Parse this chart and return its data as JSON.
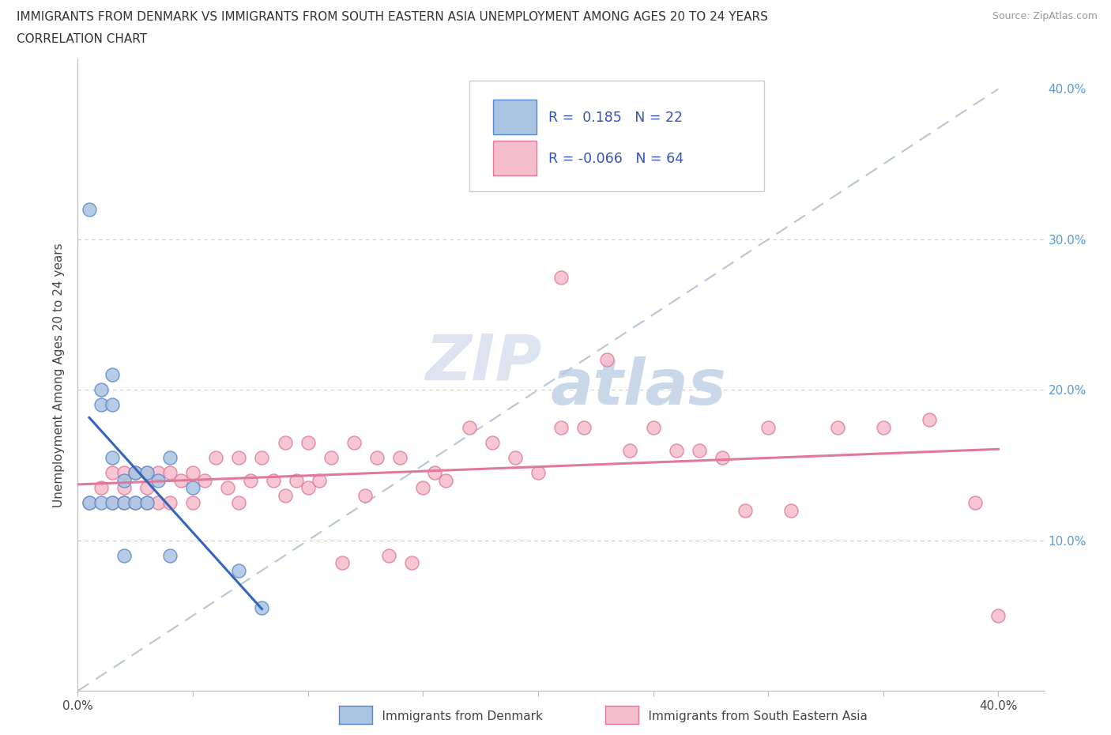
{
  "title_line1": "IMMIGRANTS FROM DENMARK VS IMMIGRANTS FROM SOUTH EASTERN ASIA UNEMPLOYMENT AMONG AGES 20 TO 24 YEARS",
  "title_line2": "CORRELATION CHART",
  "source": "Source: ZipAtlas.com",
  "ylabel": "Unemployment Among Ages 20 to 24 years",
  "xlim": [
    0.0,
    0.42
  ],
  "ylim": [
    0.0,
    0.42
  ],
  "xticks": [
    0.0,
    0.05,
    0.1,
    0.15,
    0.2,
    0.25,
    0.3,
    0.35,
    0.4
  ],
  "yticks": [
    0.1,
    0.2,
    0.3,
    0.4
  ],
  "denmark_color": "#aac4e2",
  "sea_color": "#f5bccb",
  "denmark_edge": "#5588cc",
  "sea_edge": "#e07898",
  "trendline_denmark_color": "#3366bb",
  "trendline_sea_color": "#e07898",
  "diagonal_color": "#b8c4d8",
  "legend_R_denmark": "0.185",
  "legend_N_denmark": "22",
  "legend_R_sea": "-0.066",
  "legend_N_sea": "64",
  "watermark_zip": "ZIP",
  "watermark_atlas": "atlas",
  "denmark_x": [
    0.005,
    0.005,
    0.01,
    0.01,
    0.01,
    0.015,
    0.015,
    0.015,
    0.015,
    0.02,
    0.02,
    0.02,
    0.025,
    0.025,
    0.03,
    0.03,
    0.035,
    0.04,
    0.04,
    0.05,
    0.07,
    0.08
  ],
  "denmark_y": [
    0.125,
    0.32,
    0.2,
    0.19,
    0.125,
    0.21,
    0.19,
    0.155,
    0.125,
    0.14,
    0.125,
    0.09,
    0.145,
    0.125,
    0.145,
    0.125,
    0.14,
    0.155,
    0.09,
    0.135,
    0.08,
    0.055
  ],
  "sea_x": [
    0.005,
    0.01,
    0.015,
    0.015,
    0.02,
    0.02,
    0.02,
    0.025,
    0.025,
    0.03,
    0.03,
    0.03,
    0.035,
    0.035,
    0.04,
    0.04,
    0.045,
    0.05,
    0.05,
    0.055,
    0.06,
    0.065,
    0.07,
    0.07,
    0.075,
    0.08,
    0.085,
    0.09,
    0.09,
    0.095,
    0.1,
    0.1,
    0.105,
    0.11,
    0.115,
    0.12,
    0.125,
    0.13,
    0.135,
    0.14,
    0.145,
    0.15,
    0.155,
    0.16,
    0.17,
    0.18,
    0.19,
    0.2,
    0.21,
    0.22,
    0.23,
    0.24,
    0.25,
    0.26,
    0.27,
    0.28,
    0.29,
    0.3,
    0.31,
    0.33,
    0.35,
    0.37,
    0.39,
    0.4
  ],
  "sea_y": [
    0.125,
    0.135,
    0.145,
    0.125,
    0.145,
    0.135,
    0.125,
    0.145,
    0.125,
    0.145,
    0.135,
    0.125,
    0.145,
    0.125,
    0.145,
    0.125,
    0.14,
    0.145,
    0.125,
    0.14,
    0.155,
    0.135,
    0.155,
    0.125,
    0.14,
    0.155,
    0.14,
    0.165,
    0.13,
    0.14,
    0.165,
    0.135,
    0.14,
    0.155,
    0.085,
    0.165,
    0.13,
    0.155,
    0.09,
    0.155,
    0.085,
    0.135,
    0.145,
    0.14,
    0.175,
    0.165,
    0.155,
    0.145,
    0.175,
    0.175,
    0.22,
    0.16,
    0.175,
    0.16,
    0.16,
    0.155,
    0.12,
    0.175,
    0.12,
    0.175,
    0.175,
    0.18,
    0.125,
    0.05
  ],
  "sea_outlier_x": [
    0.21
  ],
  "sea_outlier_y": [
    0.275
  ]
}
